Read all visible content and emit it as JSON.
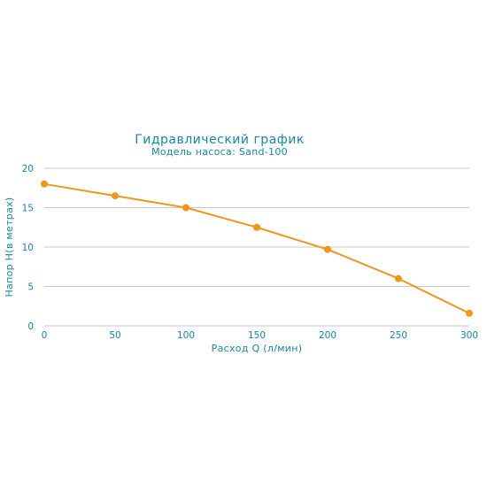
{
  "chart_data": {
    "type": "line",
    "title": "Гидравлический график",
    "subtitle": "Модель насоса: Sand-100",
    "xlabel": "Расход Q (л/мин)",
    "ylabel": "Напор H(в метрах)",
    "x": [
      0,
      50,
      100,
      150,
      200,
      250,
      300
    ],
    "series": [
      {
        "values": [
          18,
          16.5,
          15,
          12.5,
          9.7,
          6,
          1.6
        ],
        "color": "#f0961d"
      }
    ],
    "xlim": [
      0,
      300
    ],
    "ylim": [
      0,
      20
    ],
    "xticks": [
      "0",
      "50",
      "100",
      "150",
      "200",
      "250",
      "300"
    ],
    "yticks": [
      "0",
      "5",
      "10",
      "15",
      "20"
    ],
    "grid": "horizontal",
    "colors": {
      "text": "#1b84a6",
      "grid": "#c8c8c8",
      "line": "#f0961d"
    }
  }
}
